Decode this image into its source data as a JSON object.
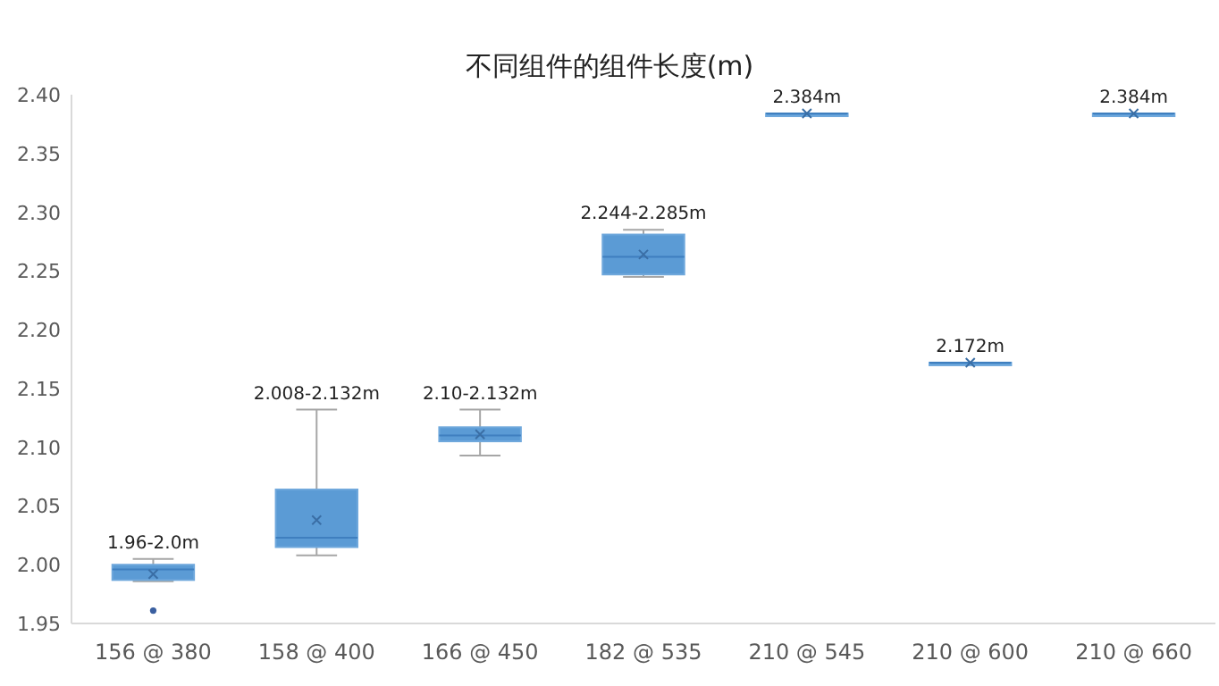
{
  "chart_data": {
    "type": "box",
    "title": "不同组件的组件长度(m)",
    "color": "#5b9bd5",
    "categories": [
      "156 @ 380",
      "158 @ 400",
      "166 @ 450",
      "182 @ 535",
      "210 @ 545",
      "210 @ 600",
      "210 @ 660"
    ],
    "boxes": [
      {
        "low": 1.986,
        "q1": 1.987,
        "median": 1.996,
        "q3": 2.0,
        "high": 2.005,
        "mean": 1.992,
        "outliers": [
          1.961
        ]
      },
      {
        "low": 2.008,
        "q1": 2.015,
        "median": 2.023,
        "q3": 2.064,
        "high": 2.132,
        "mean": 2.038
      },
      {
        "low": 2.093,
        "q1": 2.105,
        "median": 2.11,
        "q3": 2.117,
        "high": 2.132,
        "mean": 2.111
      },
      {
        "low": 2.245,
        "q1": 2.247,
        "median": 2.262,
        "q3": 2.281,
        "high": 2.285,
        "mean": 2.264
      },
      {
        "low": 2.384,
        "q1": 2.384,
        "median": 2.384,
        "q3": 2.384,
        "high": 2.384,
        "mean": 2.384
      },
      {
        "low": 2.172,
        "q1": 2.172,
        "median": 2.172,
        "q3": 2.172,
        "high": 2.172,
        "mean": 2.172
      },
      {
        "low": 2.384,
        "q1": 2.384,
        "median": 2.384,
        "q3": 2.384,
        "high": 2.384,
        "mean": 2.384
      }
    ],
    "ylim": [
      1.95,
      2.4
    ],
    "yticks": [
      {
        "value": 1.95,
        "label": "1.95"
      },
      {
        "value": 2.0,
        "label": "2.00"
      },
      {
        "value": 2.05,
        "label": "2.05"
      },
      {
        "value": 2.1,
        "label": "2.10"
      },
      {
        "value": 2.15,
        "label": "2.15"
      },
      {
        "value": 2.2,
        "label": "2.20"
      },
      {
        "value": 2.25,
        "label": "2.25"
      },
      {
        "value": 2.3,
        "label": "2.30"
      },
      {
        "value": 2.35,
        "label": "2.35"
      },
      {
        "value": 2.4,
        "label": "2.40"
      }
    ],
    "annotations": [
      {
        "text": "1.96-2.0m",
        "x": "156 @ 380",
        "y": 2.005
      },
      {
        "text": "2.008-2.132m",
        "x": "158 @ 400",
        "y": 2.132
      },
      {
        "text": "2.10-2.132m",
        "x": "166 @ 450",
        "y": 2.132
      },
      {
        "text": "2.244-2.285m",
        "x": "182 @ 535",
        "y": 2.285
      },
      {
        "text": "2.384m",
        "x": "210 @ 545",
        "y": 2.384
      },
      {
        "text": "2.172m",
        "x": "210 @ 600",
        "y": 2.172
      },
      {
        "text": "2.384m",
        "x": "210 @ 660",
        "y": 2.384
      }
    ]
  }
}
